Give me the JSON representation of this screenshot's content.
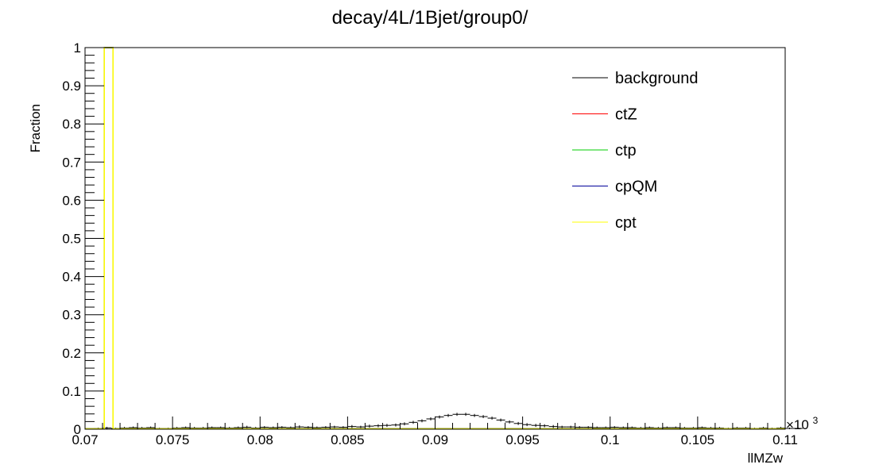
{
  "chart_data": {
    "type": "line",
    "title": "decay/4L/1Bjet/group0/",
    "xlabel": "llMZw",
    "ylabel": "Fraction",
    "x_exponent_label": "×10",
    "x_exponent_power": "3",
    "xlim": [
      0.07,
      0.11
    ],
    "ylim": [
      0,
      1
    ],
    "x_ticks": [
      "0.07",
      "0.075",
      "0.08",
      "0.085",
      "0.09",
      "0.095",
      "0.1",
      "0.105",
      "0.11"
    ],
    "y_ticks": [
      "0",
      "0.1",
      "0.2",
      "0.3",
      "0.4",
      "0.5",
      "0.6",
      "0.7",
      "0.8",
      "0.9",
      "1"
    ],
    "legend_position": "top-right",
    "grid": false,
    "series": [
      {
        "name": "background",
        "color": "#000000",
        "bin_start": 0.0705,
        "bin_width": 0.0005,
        "values": [
          0.002,
          0.003,
          0.002,
          0.003,
          0.004,
          0.003,
          0.004,
          0.002,
          0.002,
          0.003,
          0.004,
          0.003,
          0.003,
          0.004,
          0.004,
          0.003,
          0.004,
          0.005,
          0.003,
          0.005,
          0.004,
          0.005,
          0.004,
          0.006,
          0.005,
          0.004,
          0.005,
          0.006,
          0.005,
          0.007,
          0.006,
          0.008,
          0.009,
          0.01,
          0.011,
          0.014,
          0.018,
          0.022,
          0.027,
          0.032,
          0.036,
          0.039,
          0.039,
          0.036,
          0.033,
          0.029,
          0.024,
          0.019,
          0.015,
          0.012,
          0.01,
          0.009,
          0.007,
          0.006,
          0.006,
          0.005,
          0.005,
          0.004,
          0.004,
          0.005,
          0.004,
          0.004,
          0.003,
          0.004,
          0.003,
          0.004,
          0.004,
          0.003,
          0.003,
          0.004,
          0.003,
          0.003,
          0.002,
          0.003,
          0.003,
          0.002,
          0.003,
          0.002,
          0.003,
          0.002,
          0.002
        ],
        "errors": [
          0.002,
          0.003,
          0.002,
          0.003,
          0.003,
          0.003,
          0.003,
          0.002,
          0.002,
          0.003,
          0.003,
          0.003,
          0.003,
          0.003,
          0.003,
          0.003,
          0.003,
          0.004,
          0.003,
          0.003,
          0.003,
          0.003,
          0.003,
          0.004,
          0.003,
          0.003,
          0.003,
          0.003,
          0.003,
          0.004,
          0.003,
          0.004,
          0.004,
          0.004,
          0.004,
          0.004,
          0.004,
          0.004,
          0.004,
          0.004,
          0.004,
          0.004,
          0.004,
          0.004,
          0.004,
          0.004,
          0.004,
          0.004,
          0.004,
          0.004,
          0.004,
          0.004,
          0.004,
          0.003,
          0.003,
          0.003,
          0.003,
          0.003,
          0.003,
          0.003,
          0.003,
          0.003,
          0.003,
          0.003,
          0.003,
          0.003,
          0.003,
          0.003,
          0.003,
          0.003,
          0.003,
          0.003,
          0.002,
          0.003,
          0.003,
          0.002,
          0.003,
          0.002,
          0.003,
          0.002,
          0.002
        ]
      },
      {
        "name": "ctZ",
        "color": "#ff0000",
        "spike_bin": [
          0.0711,
          0.0716
        ],
        "values_in_spike": 1.0
      },
      {
        "name": "ctp",
        "color": "#00cc00",
        "spike_bin": [
          0.0711,
          0.0716
        ],
        "values_in_spike": 1.0
      },
      {
        "name": "cpQM",
        "color": "#000099",
        "spike_bin": [
          0.0711,
          0.0716
        ],
        "values_in_spike": 1.0
      },
      {
        "name": "cpt",
        "color": "#ffff00",
        "spike_bin": [
          0.0711,
          0.0716
        ],
        "values_in_spike": 1.0
      }
    ]
  }
}
